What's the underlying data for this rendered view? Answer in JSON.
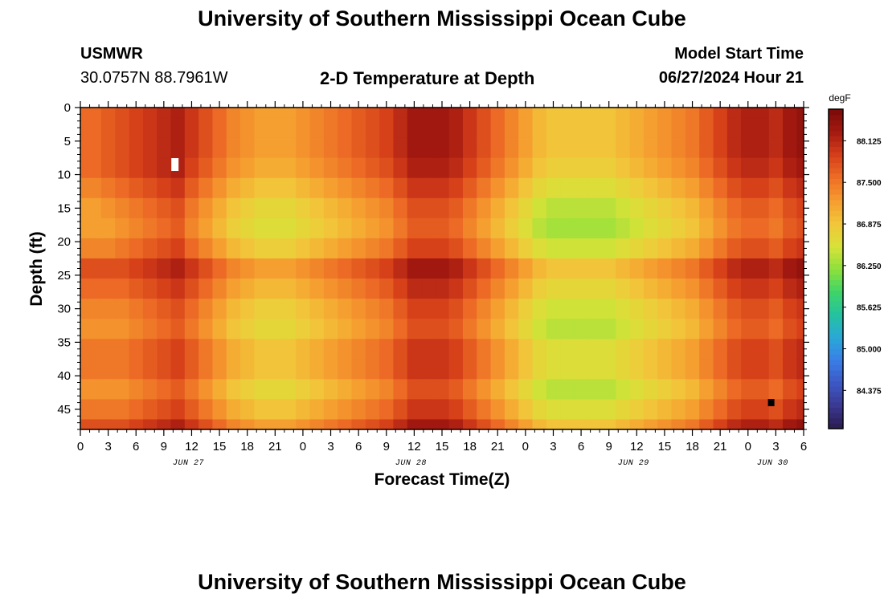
{
  "header": {
    "title": "University of Southern Mississippi Ocean Cube",
    "station_name": "USMWR",
    "station_coords": "30.0757N  88.7961W",
    "plot_title": "2-D Temperature at Depth",
    "model_start_label": "Model Start Time",
    "model_start_value": "06/27/2024 Hour 21"
  },
  "footer": {
    "title": "University of Southern Mississippi Ocean Cube"
  },
  "chart_data": {
    "type": "heatmap",
    "title": "2-D Temperature at Depth",
    "xlabel": "Forecast Time(Z)",
    "ylabel": "Depth (ft)",
    "x_unit": "hours since 06/27 00Z",
    "xlim": [
      0,
      78
    ],
    "ylim": [
      0,
      48
    ],
    "y_inverted": true,
    "x_ticks": [
      0,
      3,
      6,
      9,
      12,
      15,
      18,
      21,
      24,
      27,
      30,
      33,
      36,
      39,
      42,
      45,
      48,
      51,
      54,
      57,
      60,
      63,
      66,
      69,
      72,
      75,
      78
    ],
    "x_tick_labels": [
      "0",
      "3",
      "6",
      "9",
      "12",
      "15",
      "18",
      "21",
      "0",
      "3",
      "6",
      "9",
      "12",
      "15",
      "18",
      "21",
      "0",
      "3",
      "6",
      "9",
      "12",
      "15",
      "18",
      "21",
      "0",
      "3",
      "6"
    ],
    "y_ticks": [
      0,
      5,
      10,
      15,
      20,
      25,
      30,
      35,
      40,
      45
    ],
    "y_tick_labels": [
      "0",
      "5",
      "10",
      "15",
      "20",
      "25",
      "30",
      "35",
      "40",
      "45"
    ],
    "date_labels": [
      {
        "text": "JUN 27",
        "x": 12
      },
      {
        "text": "JUN 28",
        "x": 36
      },
      {
        "text": "JUN 29",
        "x": 60
      },
      {
        "text": "JUN 30",
        "x": 75
      }
    ],
    "colorbar": {
      "unit": "degF",
      "min": 83.8,
      "max": 88.6,
      "tick_values": [
        88.125,
        87.5,
        86.875,
        86.25,
        85.625,
        85.0,
        84.375
      ],
      "tick_labels": [
        "88.125",
        "87.500",
        "86.875",
        "86.250",
        "85.625",
        "85.000",
        "84.375"
      ],
      "colors": [
        "#2a1a4e",
        "#3a3890",
        "#3c58c4",
        "#3a7ee6",
        "#2aa8d8",
        "#25c2a0",
        "#3ed468",
        "#8ee03c",
        "#d8e238",
        "#f2c63a",
        "#f59c2f",
        "#ee6e26",
        "#d63f1a",
        "#a51a10",
        "#7a0a08"
      ]
    },
    "grid": {
      "x_hours": [
        0,
        1.5,
        3,
        4.5,
        6,
        7.5,
        9,
        10.5,
        12,
        13.5,
        15,
        16.5,
        18,
        19.5,
        21,
        22.5,
        24,
        25.5,
        27,
        28.5,
        30,
        31.5,
        33,
        34.5,
        36,
        37.5,
        39,
        40.5,
        42,
        43.5,
        45,
        46.5,
        48,
        49.5,
        51,
        52.5,
        54,
        55.5,
        57,
        58.5,
        60,
        61.5,
        63,
        64.5,
        66,
        67.5,
        69,
        70.5,
        72,
        73.5,
        75,
        76.5,
        78
      ],
      "depths_ft": [
        0,
        3,
        6,
        9,
        12,
        15,
        18,
        21,
        24,
        27,
        30,
        33,
        36,
        39,
        42,
        45,
        48
      ],
      "values_degF": [
        [
          87.6,
          87.6,
          87.6,
          87.6,
          87.4,
          87.2,
          87.2,
          87.4,
          87.8,
          87.6,
          87.4,
          87.3,
          87.5,
          87.5,
          87.3,
          87.5,
          87.8
        ],
        [
          87.6,
          87.6,
          87.6,
          87.6,
          87.4,
          87.2,
          87.2,
          87.4,
          87.8,
          87.6,
          87.4,
          87.3,
          87.5,
          87.5,
          87.3,
          87.5,
          87.8
        ],
        [
          87.7,
          87.7,
          87.7,
          87.7,
          87.5,
          87.3,
          87.2,
          87.4,
          87.8,
          87.6,
          87.4,
          87.3,
          87.5,
          87.5,
          87.3,
          87.5,
          87.8
        ],
        [
          87.8,
          87.8,
          87.8,
          87.8,
          87.6,
          87.4,
          87.3,
          87.5,
          87.8,
          87.6,
          87.4,
          87.3,
          87.5,
          87.5,
          87.3,
          87.5,
          87.8
        ],
        [
          87.9,
          87.9,
          87.9,
          87.9,
          87.7,
          87.5,
          87.4,
          87.6,
          87.9,
          87.7,
          87.5,
          87.4,
          87.6,
          87.6,
          87.4,
          87.6,
          87.9
        ],
        [
          88.0,
          88.0,
          88.0,
          88.0,
          87.8,
          87.6,
          87.5,
          87.7,
          88.0,
          87.8,
          87.6,
          87.5,
          87.7,
          87.7,
          87.5,
          87.7,
          88.0
        ],
        [
          88.1,
          88.1,
          88.1,
          88.1,
          87.9,
          87.7,
          87.6,
          87.8,
          88.1,
          87.9,
          87.7,
          87.6,
          87.8,
          87.8,
          87.6,
          87.8,
          88.1
        ],
        [
          88.2,
          88.2,
          88.2,
          88.2,
          88.0,
          87.8,
          87.7,
          87.9,
          88.2,
          88.0,
          87.8,
          87.7,
          87.9,
          87.9,
          87.7,
          87.9,
          88.2
        ],
        [
          88.0,
          88.0,
          88.0,
          87.9,
          87.7,
          87.5,
          87.4,
          87.6,
          88.0,
          87.8,
          87.6,
          87.5,
          87.7,
          87.7,
          87.5,
          87.7,
          88.0
        ],
        [
          87.8,
          87.8,
          87.8,
          87.7,
          87.5,
          87.3,
          87.2,
          87.4,
          87.8,
          87.6,
          87.4,
          87.3,
          87.5,
          87.5,
          87.3,
          87.5,
          87.8
        ],
        [
          87.6,
          87.6,
          87.6,
          87.5,
          87.3,
          87.1,
          87.0,
          87.2,
          87.6,
          87.4,
          87.2,
          87.1,
          87.3,
          87.3,
          87.1,
          87.3,
          87.6
        ],
        [
          87.4,
          87.4,
          87.4,
          87.3,
          87.1,
          86.9,
          86.8,
          87.0,
          87.4,
          87.2,
          87.0,
          86.9,
          87.1,
          87.1,
          86.9,
          87.1,
          87.4
        ],
        [
          87.3,
          87.3,
          87.3,
          87.2,
          87.0,
          86.8,
          86.7,
          86.9,
          87.3,
          87.1,
          86.9,
          86.8,
          87.0,
          87.0,
          86.8,
          87.0,
          87.3
        ],
        [
          87.2,
          87.2,
          87.2,
          87.1,
          86.9,
          86.7,
          86.6,
          86.8,
          87.2,
          87.0,
          86.8,
          86.7,
          86.9,
          86.9,
          86.7,
          86.9,
          87.2
        ],
        [
          87.2,
          87.2,
          87.2,
          87.1,
          86.9,
          86.7,
          86.6,
          86.8,
          87.2,
          87.0,
          86.8,
          86.7,
          86.9,
          86.9,
          86.7,
          86.9,
          87.2
        ],
        [
          87.2,
          87.2,
          87.2,
          87.1,
          86.9,
          86.7,
          86.6,
          86.8,
          87.2,
          87.0,
          86.8,
          86.7,
          86.9,
          86.9,
          86.7,
          86.9,
          87.2
        ],
        [
          87.3,
          87.3,
          87.3,
          87.2,
          87.0,
          86.8,
          86.7,
          86.9,
          87.3,
          87.1,
          86.9,
          86.8,
          87.0,
          87.0,
          86.8,
          87.0,
          87.3
        ],
        [
          87.4,
          87.4,
          87.4,
          87.3,
          87.1,
          86.9,
          86.8,
          87.0,
          87.4,
          87.2,
          87.0,
          86.9,
          87.1,
          87.1,
          86.9,
          87.1,
          87.4
        ],
        [
          87.5,
          87.5,
          87.5,
          87.4,
          87.2,
          87.0,
          86.9,
          87.1,
          87.5,
          87.3,
          87.1,
          87.0,
          87.2,
          87.2,
          87.0,
          87.2,
          87.5
        ],
        [
          87.6,
          87.6,
          87.6,
          87.5,
          87.3,
          87.1,
          87.0,
          87.2,
          87.6,
          87.4,
          87.2,
          87.1,
          87.3,
          87.3,
          87.1,
          87.3,
          87.6
        ],
        [
          87.7,
          87.7,
          87.7,
          87.6,
          87.4,
          87.2,
          87.1,
          87.3,
          87.7,
          87.5,
          87.3,
          87.2,
          87.4,
          87.4,
          87.2,
          87.4,
          87.7
        ],
        [
          87.8,
          87.8,
          87.8,
          87.7,
          87.5,
          87.3,
          87.2,
          87.4,
          87.8,
          87.6,
          87.4,
          87.3,
          87.5,
          87.5,
          87.3,
          87.5,
          87.8
        ],
        [
          87.9,
          87.9,
          87.9,
          87.8,
          87.6,
          87.4,
          87.3,
          87.5,
          87.9,
          87.7,
          87.5,
          87.4,
          87.6,
          87.6,
          87.4,
          87.6,
          87.9
        ],
        [
          88.1,
          88.1,
          88.1,
          88.0,
          87.8,
          87.6,
          87.5,
          87.7,
          88.1,
          87.9,
          87.7,
          87.6,
          87.8,
          87.8,
          87.6,
          87.8,
          88.1
        ],
        [
          88.3,
          88.3,
          88.3,
          88.2,
          88.0,
          87.8,
          87.7,
          87.9,
          88.3,
          88.1,
          87.9,
          87.8,
          88.0,
          88.0,
          87.8,
          88.0,
          88.3
        ],
        [
          88.3,
          88.3,
          88.3,
          88.2,
          88.0,
          87.8,
          87.7,
          87.9,
          88.3,
          88.1,
          87.9,
          87.8,
          88.0,
          88.0,
          87.8,
          88.0,
          88.3
        ],
        [
          88.3,
          88.3,
          88.3,
          88.2,
          88.0,
          87.8,
          87.7,
          87.9,
          88.3,
          88.1,
          87.9,
          87.8,
          88.0,
          88.0,
          87.8,
          88.0,
          88.3
        ],
        [
          88.2,
          88.2,
          88.2,
          88.1,
          87.9,
          87.7,
          87.6,
          87.8,
          88.2,
          88.0,
          87.8,
          87.7,
          87.9,
          87.9,
          87.7,
          87.9,
          88.2
        ],
        [
          88.0,
          88.0,
          88.0,
          87.9,
          87.7,
          87.5,
          87.4,
          87.6,
          88.0,
          87.8,
          87.6,
          87.5,
          87.7,
          87.7,
          87.5,
          87.7,
          88.0
        ],
        [
          87.8,
          87.8,
          87.8,
          87.7,
          87.5,
          87.3,
          87.2,
          87.4,
          87.8,
          87.6,
          87.4,
          87.3,
          87.5,
          87.5,
          87.3,
          87.5,
          87.8
        ],
        [
          87.6,
          87.6,
          87.6,
          87.5,
          87.3,
          87.1,
          87.0,
          87.2,
          87.6,
          87.4,
          87.2,
          87.1,
          87.3,
          87.3,
          87.1,
          87.3,
          87.6
        ],
        [
          87.4,
          87.4,
          87.4,
          87.3,
          87.1,
          86.9,
          86.8,
          87.0,
          87.4,
          87.2,
          87.0,
          86.9,
          87.1,
          87.1,
          86.9,
          87.1,
          87.4
        ],
        [
          87.2,
          87.2,
          87.2,
          87.1,
          86.9,
          86.7,
          86.6,
          86.8,
          87.2,
          87.0,
          86.8,
          86.7,
          86.9,
          86.9,
          86.7,
          86.9,
          87.2
        ],
        [
          87.0,
          87.0,
          87.0,
          86.9,
          86.7,
          86.5,
          86.4,
          86.6,
          87.0,
          86.8,
          86.6,
          86.5,
          86.7,
          86.7,
          86.5,
          86.7,
          87.0
        ],
        [
          86.9,
          86.9,
          86.9,
          86.8,
          86.6,
          86.4,
          86.3,
          86.5,
          86.9,
          86.7,
          86.5,
          86.4,
          86.6,
          86.6,
          86.4,
          86.6,
          86.9
        ],
        [
          86.9,
          86.9,
          86.9,
          86.8,
          86.6,
          86.4,
          86.3,
          86.5,
          86.9,
          86.7,
          86.5,
          86.4,
          86.6,
          86.6,
          86.4,
          86.6,
          86.9
        ],
        [
          86.9,
          86.9,
          86.9,
          86.8,
          86.6,
          86.4,
          86.3,
          86.5,
          86.9,
          86.7,
          86.5,
          86.4,
          86.6,
          86.6,
          86.4,
          86.6,
          86.9
        ],
        [
          86.9,
          86.9,
          86.9,
          86.8,
          86.6,
          86.4,
          86.3,
          86.5,
          86.9,
          86.7,
          86.5,
          86.4,
          86.6,
          86.6,
          86.4,
          86.6,
          86.9
        ],
        [
          86.9,
          86.9,
          86.9,
          86.8,
          86.6,
          86.4,
          86.3,
          86.5,
          86.9,
          86.7,
          86.5,
          86.4,
          86.6,
          86.6,
          86.4,
          86.6,
          86.9
        ],
        [
          87.0,
          87.0,
          87.0,
          86.9,
          86.7,
          86.5,
          86.4,
          86.6,
          87.0,
          86.8,
          86.6,
          86.5,
          86.7,
          86.7,
          86.5,
          86.7,
          87.0
        ],
        [
          87.1,
          87.1,
          87.1,
          87.0,
          86.8,
          86.6,
          86.5,
          86.7,
          87.1,
          86.9,
          86.7,
          86.6,
          86.8,
          86.8,
          86.6,
          86.8,
          87.1
        ],
        [
          87.2,
          87.2,
          87.2,
          87.1,
          86.9,
          86.7,
          86.6,
          86.8,
          87.2,
          87.0,
          86.8,
          86.7,
          86.9,
          86.9,
          86.7,
          86.9,
          87.2
        ],
        [
          87.3,
          87.3,
          87.3,
          87.2,
          87.0,
          86.8,
          86.7,
          86.9,
          87.3,
          87.1,
          86.9,
          86.8,
          87.0,
          87.0,
          86.8,
          87.0,
          87.3
        ],
        [
          87.4,
          87.4,
          87.4,
          87.3,
          87.1,
          86.9,
          86.8,
          87.0,
          87.4,
          87.2,
          87.0,
          86.9,
          87.1,
          87.1,
          86.9,
          87.1,
          87.4
        ],
        [
          87.5,
          87.5,
          87.5,
          87.4,
          87.2,
          87.0,
          86.9,
          87.1,
          87.5,
          87.3,
          87.1,
          87.0,
          87.2,
          87.2,
          87.0,
          87.2,
          87.5
        ],
        [
          87.7,
          87.7,
          87.7,
          87.6,
          87.4,
          87.2,
          87.1,
          87.3,
          87.7,
          87.5,
          87.3,
          87.2,
          87.4,
          87.4,
          87.2,
          87.4,
          87.7
        ],
        [
          87.9,
          87.9,
          87.9,
          87.8,
          87.6,
          87.4,
          87.3,
          87.5,
          87.9,
          87.7,
          87.5,
          87.4,
          87.6,
          87.6,
          87.4,
          87.6,
          87.9
        ],
        [
          88.1,
          88.1,
          88.1,
          88.0,
          87.8,
          87.6,
          87.5,
          87.7,
          88.1,
          87.9,
          87.7,
          87.6,
          87.8,
          87.8,
          87.6,
          87.8,
          88.1
        ],
        [
          88.2,
          88.2,
          88.2,
          88.1,
          87.9,
          87.7,
          87.6,
          87.8,
          88.2,
          88.0,
          87.8,
          87.7,
          87.9,
          87.9,
          87.7,
          87.9,
          88.2
        ],
        [
          88.2,
          88.2,
          88.2,
          88.1,
          87.9,
          87.7,
          87.6,
          87.8,
          88.2,
          88.0,
          87.8,
          87.7,
          87.9,
          87.9,
          87.7,
          87.9,
          88.2
        ],
        [
          88.1,
          88.1,
          88.1,
          88.0,
          87.8,
          87.6,
          87.5,
          87.7,
          88.1,
          87.9,
          87.7,
          87.6,
          87.8,
          87.8,
          87.6,
          87.8,
          88.1
        ],
        [
          88.3,
          88.3,
          88.3,
          88.2,
          88.0,
          87.8,
          87.7,
          87.9,
          88.3,
          88.1,
          87.9,
          87.8,
          88.0,
          88.0,
          87.8,
          88.0,
          88.3
        ],
        [
          88.4,
          88.4,
          88.4,
          88.3,
          88.1,
          87.9,
          87.8,
          88.0,
          88.4,
          88.2,
          88.0,
          87.9,
          88.1,
          88.1,
          87.9,
          88.1,
          88.4
        ]
      ]
    },
    "markers": [
      {
        "label": "max",
        "x": 10.2,
        "depth": 8.5,
        "color": "#ffffff"
      },
      {
        "label": "min",
        "x": 74.5,
        "depth": 44,
        "color": "#000000"
      }
    ]
  }
}
